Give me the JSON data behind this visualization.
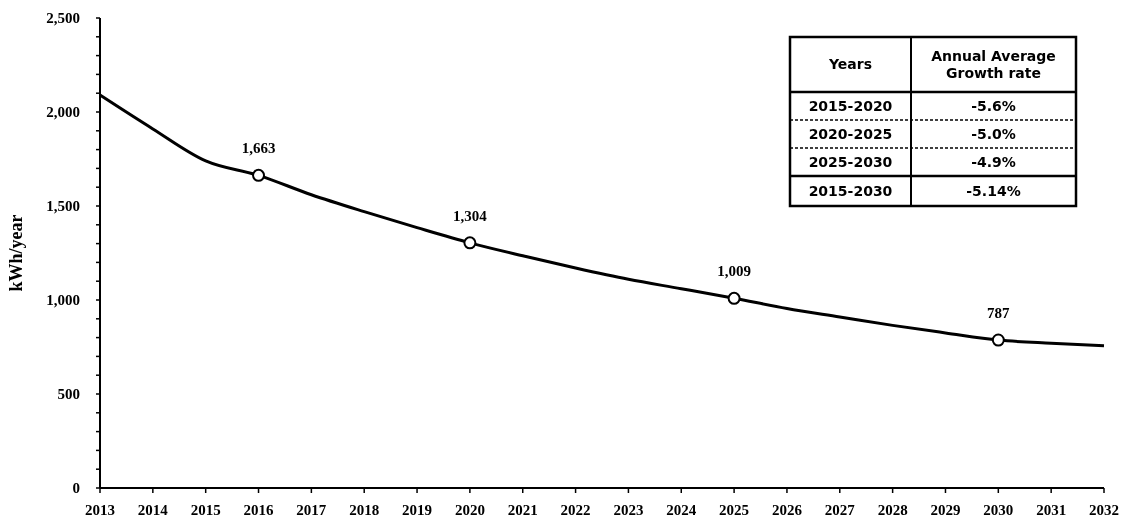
{
  "chart_data": {
    "type": "line",
    "ylabel": "kWh/year",
    "xlim": [
      2013,
      2032
    ],
    "xticks": [
      2013,
      2014,
      2015,
      2016,
      2017,
      2018,
      2019,
      2020,
      2021,
      2022,
      2023,
      2024,
      2025,
      2026,
      2027,
      2028,
      2029,
      2030,
      2031,
      2032
    ],
    "ylim": [
      0,
      2500
    ],
    "yticks": [
      {
        "value": 0,
        "label": "0"
      },
      {
        "value": 100,
        "label": null
      },
      {
        "value": 200,
        "label": null
      },
      {
        "value": 300,
        "label": null
      },
      {
        "value": 400,
        "label": null
      },
      {
        "value": 500,
        "label": "500"
      },
      {
        "value": 600,
        "label": null
      },
      {
        "value": 700,
        "label": null
      },
      {
        "value": 800,
        "label": null
      },
      {
        "value": 900,
        "label": null
      },
      {
        "value": 1000,
        "label": "1,000"
      },
      {
        "value": 1100,
        "label": null
      },
      {
        "value": 1200,
        "label": null
      },
      {
        "value": 1300,
        "label": null
      },
      {
        "value": 1400,
        "label": null
      },
      {
        "value": 1500,
        "label": "1,500"
      },
      {
        "value": 1600,
        "label": null
      },
      {
        "value": 1700,
        "label": null
      },
      {
        "value": 1800,
        "label": null
      },
      {
        "value": 1900,
        "label": null
      },
      {
        "value": 2000,
        "label": "2,000"
      },
      {
        "value": 2100,
        "label": null
      },
      {
        "value": 2200,
        "label": null
      },
      {
        "value": 2300,
        "label": null
      },
      {
        "value": 2400,
        "label": null
      },
      {
        "value": 2500,
        "label": "2,500"
      }
    ],
    "grid": false,
    "series": [
      {
        "color": "#000000",
        "marker": "none",
        "x": [
          2013,
          2014,
          2015,
          2016,
          2017,
          2018,
          2019,
          2020,
          2021,
          2022,
          2023,
          2024,
          2025,
          2026,
          2027,
          2028,
          2029,
          2030,
          2031,
          2032
        ],
        "values": [
          2090,
          1910,
          1740,
          1663,
          1560,
          1470,
          1385,
          1304,
          1235,
          1170,
          1110,
          1060,
          1009,
          955,
          910,
          865,
          825,
          787,
          770,
          757
        ]
      },
      {
        "type": "scatter",
        "color": "#000000",
        "marker": "circle",
        "x": [
          2016,
          2020,
          2025,
          2030
        ],
        "values": [
          1663,
          1304,
          1009,
          787
        ],
        "value_labels": [
          "1,663",
          "1,304",
          "1,009",
          "787"
        ]
      }
    ],
    "annotations": [
      "Years",
      "Annual Average Growth rate",
      "2015-2020",
      "-5.6%",
      "2020-2025",
      "-5.0%",
      "2025-2030",
      "-4.9%",
      "2015-2030",
      "-5.14%"
    ]
  }
}
